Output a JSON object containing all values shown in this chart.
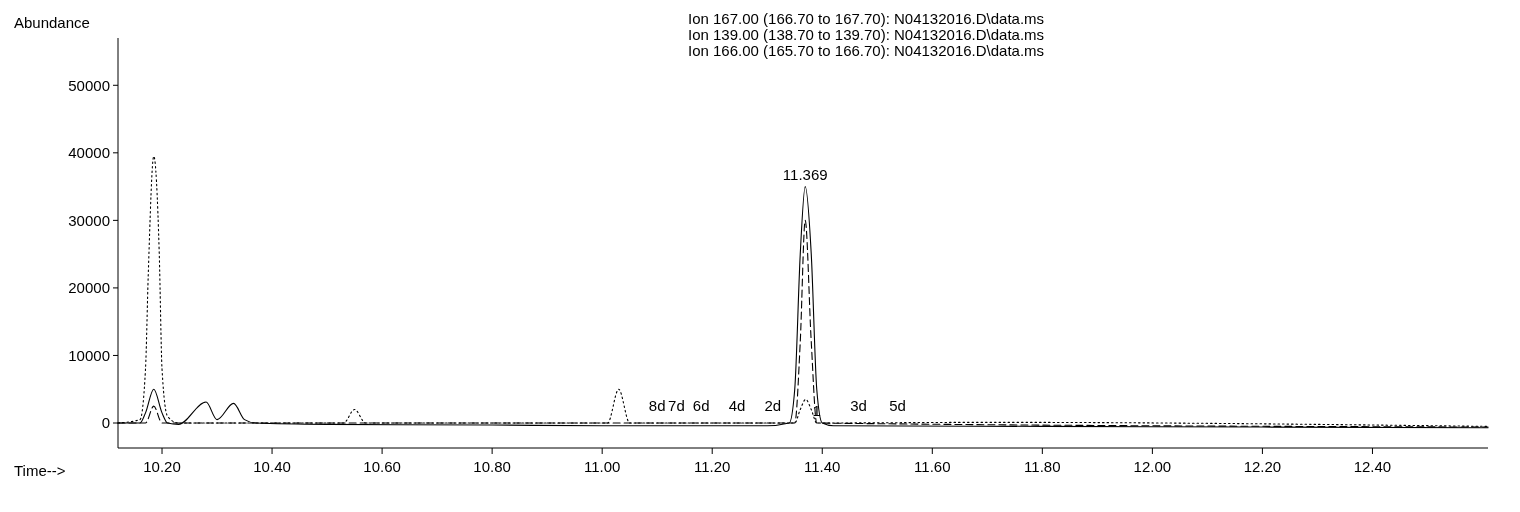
{
  "chart_data": {
    "type": "line",
    "xlabel": "Time-->",
    "ylabel": "Abundance",
    "annotations": [
      "Ion 167.00 (166.70 to 167.70): N04132016.D\\data.ms",
      "Ion 139.00 (138.70 to 139.70): N04132016.D\\data.ms",
      "Ion 166.00 (165.70 to 166.70): N04132016.D\\data.ms",
      {
        "text": "11.369",
        "x": 11.369,
        "y": 35000
      },
      {
        "text": "8d",
        "x": 11.1,
        "y": 800
      },
      {
        "text": "7d",
        "x": 11.135,
        "y": 800
      },
      {
        "text": "6d",
        "x": 11.18,
        "y": 800
      },
      {
        "text": "4d",
        "x": 11.245,
        "y": 800
      },
      {
        "text": "2d",
        "x": 11.31,
        "y": 800
      },
      {
        "text": "1",
        "x": 11.39,
        "y": 0
      },
      {
        "text": "3d",
        "x": 11.466,
        "y": 800
      },
      {
        "text": "5d",
        "x": 11.537,
        "y": 800
      }
    ],
    "xlim": [
      10.12,
      12.61
    ],
    "ylim": [
      -3700,
      57000
    ],
    "xticks": [
      {
        "value": 10.2,
        "label": "10.20"
      },
      {
        "value": 10.4,
        "label": "10.40"
      },
      {
        "value": 10.6,
        "label": "10.60"
      },
      {
        "value": 10.8,
        "label": "10.80"
      },
      {
        "value": 11,
        "label": "11.00"
      },
      {
        "value": 11.2,
        "label": "11.20"
      },
      {
        "value": 11.4,
        "label": "11.40"
      },
      {
        "value": 11.6,
        "label": "11.60"
      },
      {
        "value": 11.8,
        "label": "11.80"
      },
      {
        "value": 12,
        "label": "12.00"
      },
      {
        "value": 12.2,
        "label": "12.20"
      },
      {
        "value": 12.4,
        "label": "12.40"
      }
    ],
    "yticks": [
      0,
      10000,
      20000,
      30000,
      40000,
      50000
    ],
    "series": [
      {
        "color": "#000000",
        "line_style": "solid",
        "x": [
          10.12,
          10.16,
          10.17,
          10.185,
          10.2,
          10.21,
          10.23,
          10.28,
          10.3,
          10.33,
          10.35,
          10.37,
          10.5,
          10.8,
          11.0,
          11.3,
          11.34,
          11.35,
          11.36,
          11.369,
          11.38,
          11.39,
          11.4,
          11.42,
          11.8,
          12.2,
          12.61
        ],
        "values": [
          0,
          0,
          1500,
          5000,
          1500,
          0,
          -200,
          3100,
          500,
          2900,
          500,
          0,
          -200,
          -300,
          -400,
          -400,
          0,
          5000,
          25000,
          35000,
          25000,
          5000,
          0,
          -400,
          -500,
          -600,
          -700
        ]
      },
      {
        "color": "#000000",
        "line_style": "dotted",
        "x": [
          10.12,
          10.16,
          10.17,
          10.175,
          10.185,
          10.195,
          10.2,
          10.21,
          10.23,
          10.53,
          10.55,
          10.57,
          11.01,
          11.03,
          11.05,
          11.35,
          11.36,
          11.37,
          11.38,
          11.39,
          11.7,
          12.61
        ],
        "values": [
          0,
          500,
          8000,
          22000,
          39500,
          25000,
          8000,
          1000,
          0,
          0,
          2000,
          0,
          0,
          5000,
          0,
          0,
          2000,
          3500,
          2000,
          0,
          100,
          -500
        ]
      },
      {
        "color": "#000000",
        "line_style": "dashed",
        "x": [
          10.12,
          10.17,
          10.185,
          10.2,
          11.35,
          11.36,
          11.369,
          11.38,
          11.39,
          12.61
        ],
        "values": [
          0,
          0,
          2500,
          0,
          0,
          12000,
          30000,
          12000,
          0,
          -600
        ]
      }
    ],
    "grid": false
  }
}
